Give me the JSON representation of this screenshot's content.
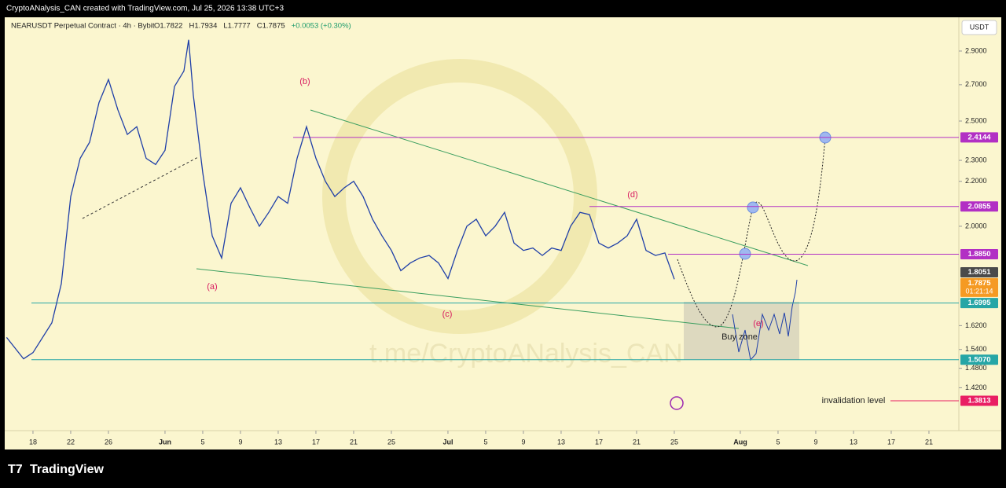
{
  "header": {
    "attribution": "CryptoANalysis_CAN created with TradingView.com, Jul 25, 2026 13:38 UTC+3"
  },
  "chart_data": {
    "type": "line",
    "title": "NEARUSDT Perpetual Contract · 4h · Bybit",
    "ohlc_labels": [
      "O1.7822",
      "H1.7934",
      "L1.7777",
      "C1.7875",
      "+0.0053 (+0.30%)"
    ],
    "currency": "USDT",
    "color": "#1f3fa8",
    "x": [
      -2.8,
      -1,
      0,
      2,
      3,
      4,
      5,
      6,
      7,
      8,
      9,
      10,
      11,
      12,
      13,
      14,
      15,
      16,
      16.5,
      17,
      18,
      19,
      20,
      21,
      22,
      23,
      24,
      25,
      26,
      27,
      28,
      29,
      30,
      31,
      32,
      33,
      34,
      35,
      36,
      37,
      38,
      39,
      40,
      41,
      42,
      43,
      44,
      45,
      46,
      47,
      48,
      49,
      50,
      51,
      52,
      53,
      54,
      55,
      56,
      57,
      58,
      59,
      60,
      61,
      62,
      63,
      64,
      65,
      66,
      67,
      68
    ],
    "values": [
      1.58,
      1.51,
      1.53,
      1.63,
      1.77,
      2.13,
      2.31,
      2.39,
      2.6,
      2.73,
      2.56,
      2.43,
      2.47,
      2.31,
      2.28,
      2.35,
      2.69,
      2.78,
      2.97,
      2.64,
      2.24,
      1.96,
      1.87,
      2.1,
      2.17,
      2.08,
      2.0,
      2.06,
      2.13,
      2.1,
      2.31,
      2.47,
      2.31,
      2.2,
      2.13,
      2.17,
      2.2,
      2.13,
      2.03,
      1.96,
      1.9,
      1.82,
      1.85,
      1.87,
      1.88,
      1.85,
      1.79,
      1.9,
      2.0,
      2.03,
      1.96,
      2.0,
      2.06,
      1.93,
      1.9,
      1.91,
      1.88,
      1.91,
      1.9,
      2.0,
      2.06,
      2.05,
      1.93,
      1.91,
      1.93,
      1.96,
      2.03,
      1.9,
      1.88,
      1.89,
      1.7875
    ],
    "xlim": [
      -2.83,
      98.17
    ],
    "xticks": [
      {
        "value": 0,
        "label": "18"
      },
      {
        "value": 4,
        "label": "22"
      },
      {
        "value": 8,
        "label": "26"
      },
      {
        "value": 14,
        "label": "Jun"
      },
      {
        "value": 18,
        "label": "5"
      },
      {
        "value": 22,
        "label": "9"
      },
      {
        "value": 26,
        "label": "13"
      },
      {
        "value": 30,
        "label": "17"
      },
      {
        "value": 34,
        "label": "21"
      },
      {
        "value": 38,
        "label": "25"
      },
      {
        "value": 44,
        "label": "Jul"
      },
      {
        "value": 48,
        "label": "5"
      },
      {
        "value": 52,
        "label": "9"
      },
      {
        "value": 56,
        "label": "13"
      },
      {
        "value": 60,
        "label": "17"
      },
      {
        "value": 64,
        "label": "21"
      },
      {
        "value": 68,
        "label": "25"
      },
      {
        "value": 75,
        "label": "Aug"
      },
      {
        "value": 79,
        "label": "5"
      },
      {
        "value": 83,
        "label": "9"
      },
      {
        "value": 87,
        "label": "13"
      },
      {
        "value": 91,
        "label": "17"
      },
      {
        "value": 95,
        "label": "21"
      }
    ],
    "ylim": [
      1.314,
      3.074
    ],
    "log_scale": true,
    "yticks": [
      {
        "value": 2.9,
        "label": "2.9000"
      },
      {
        "value": 2.7,
        "label": "2.7000"
      },
      {
        "value": 2.5,
        "label": "2.5000"
      },
      {
        "value": 2.3,
        "label": "2.3000"
      },
      {
        "value": 2.2,
        "label": "2.2000"
      },
      {
        "value": 2.0,
        "label": "2.0000"
      },
      {
        "value": 1.62,
        "label": "1.6200"
      },
      {
        "value": 1.54,
        "label": "1.5400"
      },
      {
        "value": 1.48,
        "label": "1.4800"
      },
      {
        "value": 1.42,
        "label": "1.4200"
      }
    ],
    "price_levels": [
      {
        "value": 2.4144,
        "label": "2.4144",
        "color": "#b22fc4"
      },
      {
        "value": 2.0855,
        "label": "2.0855",
        "color": "#b22fc4"
      },
      {
        "value": 1.885,
        "label": "1.8850",
        "color": "#b22fc4"
      },
      {
        "value": 1.8051,
        "label": "1.8051",
        "color": "#4a4a4a"
      },
      {
        "value": 1.7875,
        "label": "1.7875",
        "color": "#f59a23"
      },
      {
        "value": 1.6995,
        "label": "1.6995",
        "color": "#26a6a6"
      },
      {
        "value": 1.507,
        "label": "1.5070",
        "color": "#26a6a6"
      },
      {
        "value": 1.3813,
        "label": "1.3813",
        "color": "#e91e63"
      }
    ],
    "countdown": "01:21:14",
    "annotations": [
      "(a)",
      "(b)",
      "(c)",
      "(d)",
      "(e)",
      "Buy zone",
      "invalidation level"
    ],
    "watermark": "t.me/CryptoANalysis_CAN"
  },
  "footer": {
    "brand": "TradingView"
  }
}
